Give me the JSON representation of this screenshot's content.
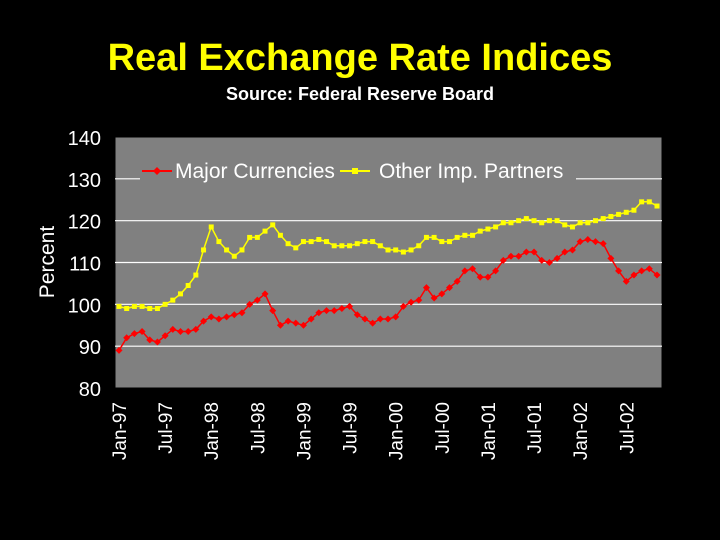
{
  "title": "Real Exchange Rate Indices",
  "subtitle": "Source: Federal Reserve Board",
  "colors": {
    "background": "#000000",
    "plot_area": "#808080",
    "grid": "#ffffff",
    "title": "#ffff00",
    "text": "#ffffff",
    "major": "#ff0000",
    "other": "#ffff00"
  },
  "chart_data": {
    "type": "line",
    "ylabel": "Percent",
    "xlabel": "",
    "ylim": [
      80,
      140
    ],
    "yticks": [
      80,
      90,
      100,
      110,
      120,
      130,
      140
    ],
    "grid": true,
    "legend_position": "top",
    "x_tick_labels": [
      "Jan-97",
      "Jul-97",
      "Jan-98",
      "Jul-98",
      "Jan-99",
      "Jul-99",
      "Jan-00",
      "Jul-00",
      "Jan-01",
      "Jul-01",
      "Jan-02",
      "Jul-02"
    ],
    "x_tick_positions": [
      0,
      6,
      12,
      18,
      24,
      30,
      36,
      42,
      48,
      54,
      60,
      66
    ],
    "series": [
      {
        "name": "Major Currencies",
        "color": "#ff0000",
        "marker": "diamond",
        "values": [
          89,
          92,
          93,
          93.5,
          91.5,
          91,
          92.5,
          94,
          93.5,
          93.5,
          94,
          96,
          97,
          96.5,
          97,
          97.5,
          98,
          100,
          101,
          102.5,
          98.5,
          95,
          96,
          95.5,
          95,
          96.5,
          98,
          98.5,
          98.5,
          99,
          99.5,
          97.5,
          96.5,
          95.5,
          96.5,
          96.5,
          97,
          99.5,
          100.5,
          101,
          104,
          101.5,
          102.5,
          104,
          105.5,
          108,
          108.5,
          106.5,
          106.5,
          108,
          110.5,
          111.5,
          111.5,
          112.5,
          112.5,
          110.5,
          110,
          111,
          112.5,
          113,
          115,
          115.5,
          115,
          114.5,
          111,
          108,
          105.5,
          107,
          108,
          108.5,
          107
        ]
      },
      {
        "name": "Other Imp. Partners",
        "color": "#ffff00",
        "marker": "square",
        "values": [
          99.5,
          99,
          99.5,
          99.5,
          99,
          99,
          100,
          101,
          102.5,
          104.5,
          107,
          113,
          118.5,
          115,
          113,
          111.5,
          113,
          116,
          116,
          117.5,
          119,
          116.5,
          114.5,
          113.5,
          115,
          115,
          115.5,
          115,
          114,
          114,
          114,
          114.5,
          115,
          115,
          114,
          113,
          113,
          112.5,
          113,
          114,
          116,
          116,
          115,
          115,
          116,
          116.5,
          116.5,
          117.5,
          118,
          118.5,
          119.5,
          119.5,
          120,
          120.5,
          120,
          119.5,
          120,
          120,
          119,
          118.5,
          119.5,
          119.5,
          120,
          120.5,
          121,
          121.5,
          122,
          122.5,
          124.5,
          124.5,
          123.5
        ]
      }
    ]
  }
}
